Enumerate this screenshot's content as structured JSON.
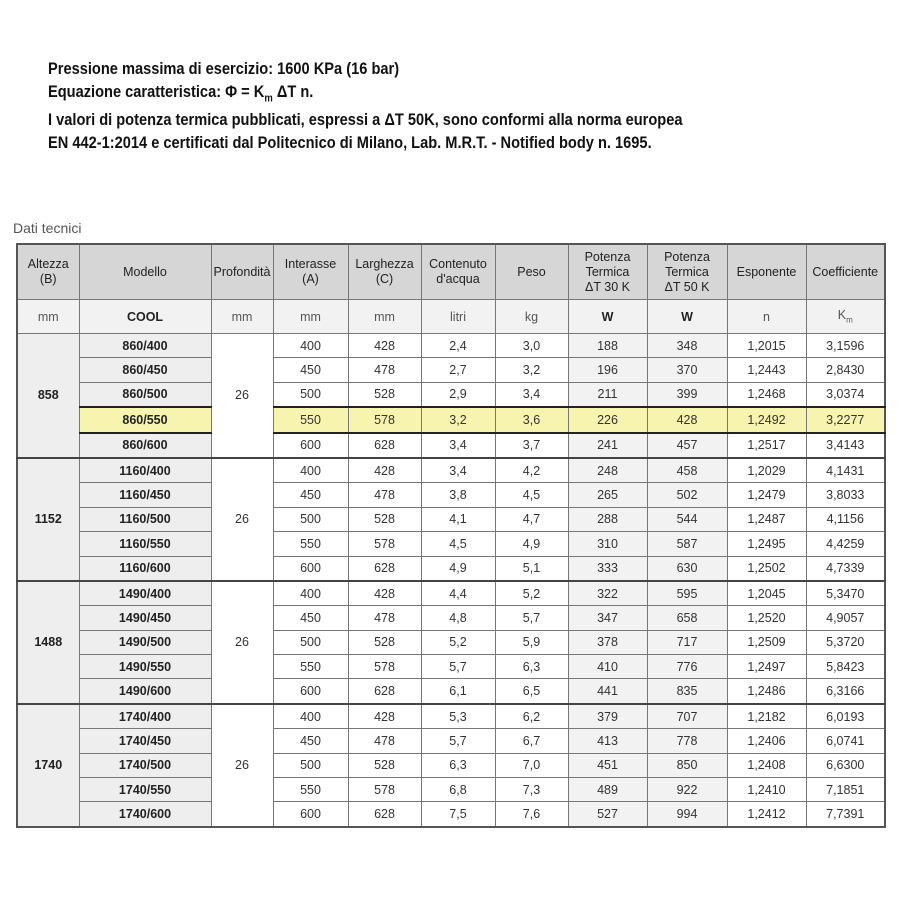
{
  "intro": {
    "lines": [
      "Pressione massima di esercizio: 1600 KPa (16 bar)",
      "Equazione caratteristica: Φ = K",
      "m",
      " ΔT n.",
      "I valori di potenza termica pubblicati, espressi a ΔT 50K, sono conformi alla norma europea",
      "EN 442-1:2014 e certificati dal Politecnico di Milano, Lab. M.R.T. - Notified body n. 1695."
    ]
  },
  "caption": "Dati tecnici",
  "headers": [
    "Altezza\n(B)",
    "Modello",
    "Profondità",
    "Interasse\n(A)",
    "Larghezza\n(C)",
    "Contenuto\nd'acqua",
    "Peso",
    "Potenza\nTermica\nΔT 30 K",
    "Potenza\nTermica\nΔT 50 K",
    "Esponente",
    "Coefficiente"
  ],
  "units": [
    "mm",
    "COOL",
    "mm",
    "mm",
    "mm",
    "litri",
    "kg",
    "W",
    "W",
    "n",
    "K",
    "m"
  ],
  "highlight_color": "#f7f4b0",
  "highlighted_model": "860/550",
  "groups": [
    {
      "altezza": "858",
      "profondita": "26",
      "rows": [
        [
          "860/400",
          "400",
          "428",
          "2,4",
          "3,0",
          "188",
          "348",
          "1,2015",
          "3,1596"
        ],
        [
          "860/450",
          "450",
          "478",
          "2,7",
          "3,2",
          "196",
          "370",
          "1,2443",
          "2,8430"
        ],
        [
          "860/500",
          "500",
          "528",
          "2,9",
          "3,4",
          "211",
          "399",
          "1,2468",
          "3,0374"
        ],
        [
          "860/550",
          "550",
          "578",
          "3,2",
          "3,6",
          "226",
          "428",
          "1,2492",
          "3,2277"
        ],
        [
          "860/600",
          "600",
          "628",
          "3,4",
          "3,7",
          "241",
          "457",
          "1,2517",
          "3,4143"
        ]
      ]
    },
    {
      "altezza": "1152",
      "profondita": "26",
      "rows": [
        [
          "1160/400",
          "400",
          "428",
          "3,4",
          "4,2",
          "248",
          "458",
          "1,2029",
          "4,1431"
        ],
        [
          "1160/450",
          "450",
          "478",
          "3,8",
          "4,5",
          "265",
          "502",
          "1,2479",
          "3,8033"
        ],
        [
          "1160/500",
          "500",
          "528",
          "4,1",
          "4,7",
          "288",
          "544",
          "1,2487",
          "4,1156"
        ],
        [
          "1160/550",
          "550",
          "578",
          "4,5",
          "4,9",
          "310",
          "587",
          "1,2495",
          "4,4259"
        ],
        [
          "1160/600",
          "600",
          "628",
          "4,9",
          "5,1",
          "333",
          "630",
          "1,2502",
          "4,7339"
        ]
      ]
    },
    {
      "altezza": "1488",
      "profondita": "26",
      "rows": [
        [
          "1490/400",
          "400",
          "428",
          "4,4",
          "5,2",
          "322",
          "595",
          "1,2045",
          "5,3470"
        ],
        [
          "1490/450",
          "450",
          "478",
          "4,8",
          "5,7",
          "347",
          "658",
          "1,2520",
          "4,9057"
        ],
        [
          "1490/500",
          "500",
          "528",
          "5,2",
          "5,9",
          "378",
          "717",
          "1,2509",
          "5,3720"
        ],
        [
          "1490/550",
          "550",
          "578",
          "5,7",
          "6,3",
          "410",
          "776",
          "1,2497",
          "5,8423"
        ],
        [
          "1490/600",
          "600",
          "628",
          "6,1",
          "6,5",
          "441",
          "835",
          "1,2486",
          "6,3166"
        ]
      ]
    },
    {
      "altezza": "1740",
      "profondita": "26",
      "rows": [
        [
          "1740/400",
          "400",
          "428",
          "5,3",
          "6,2",
          "379",
          "707",
          "1,2182",
          "6,0193"
        ],
        [
          "1740/450",
          "450",
          "478",
          "5,7",
          "6,7",
          "413",
          "778",
          "1,2406",
          "6,0741"
        ],
        [
          "1740/500",
          "500",
          "528",
          "6,3",
          "7,0",
          "451",
          "850",
          "1,2408",
          "6,6300"
        ],
        [
          "1740/550",
          "550",
          "578",
          "6,8",
          "7,3",
          "489",
          "922",
          "1,2410",
          "7,1851"
        ],
        [
          "1740/600",
          "600",
          "628",
          "7,5",
          "7,6",
          "527",
          "994",
          "1,2412",
          "7,7391"
        ]
      ]
    }
  ]
}
